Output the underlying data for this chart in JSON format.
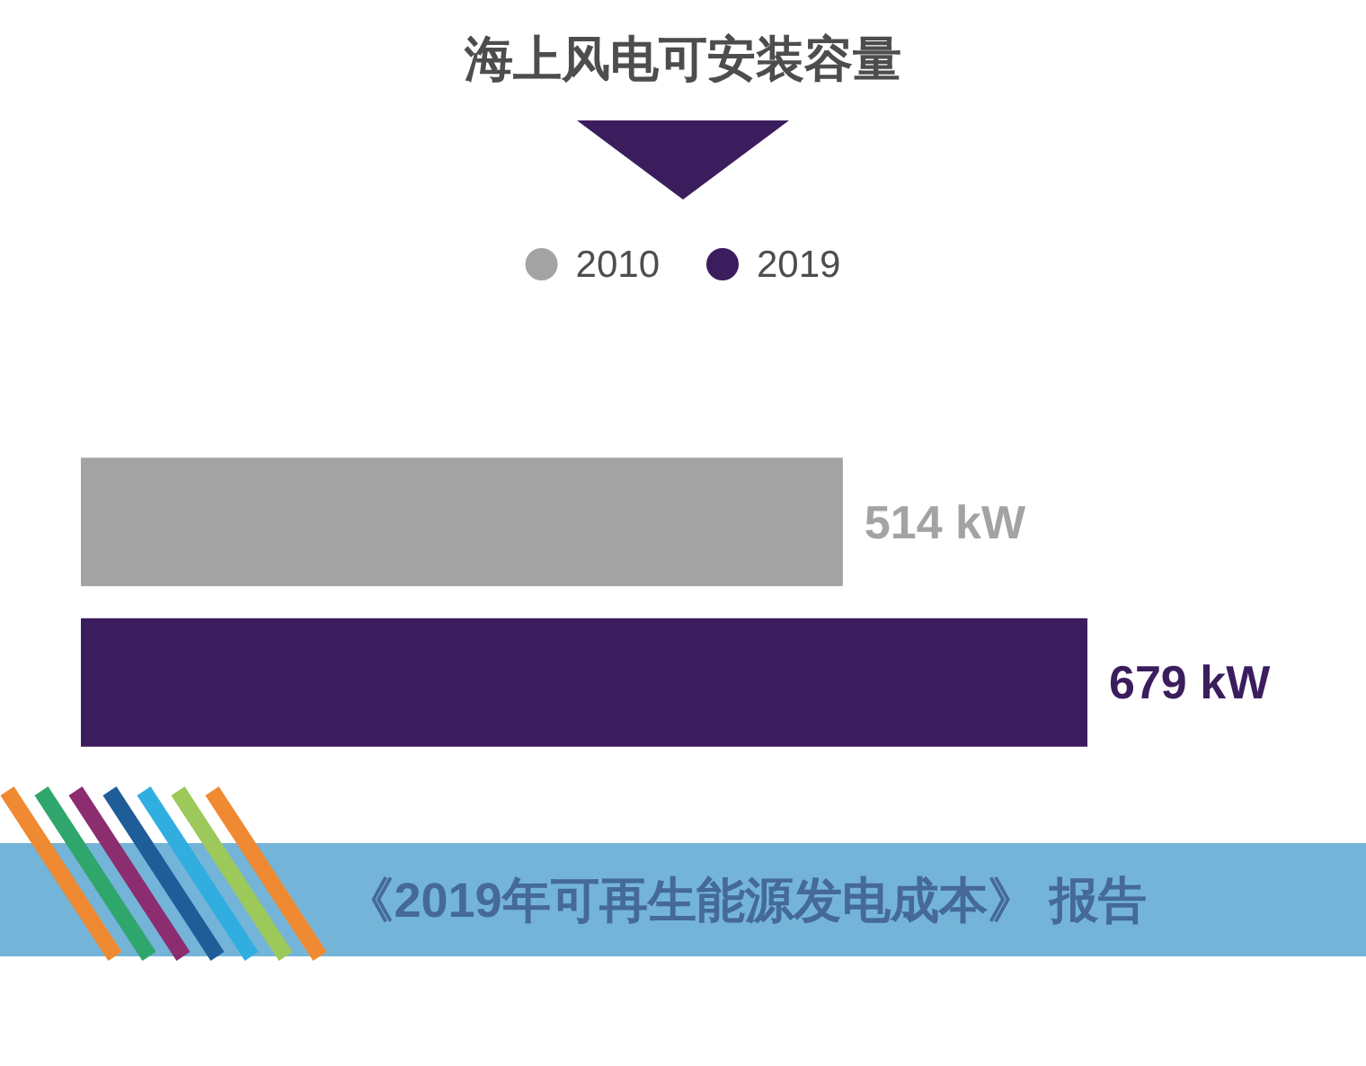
{
  "chart_data": {
    "type": "bar",
    "orientation": "horizontal",
    "title": "海上风电可安装容量",
    "categories": [
      null
    ],
    "series": [
      {
        "name": "2010",
        "color": "#a3a3a3",
        "values": [
          514
        ],
        "value_labels": [
          "514 kW"
        ]
      },
      {
        "name": "2019",
        "color": "#3b1d5e",
        "values": [
          679
        ],
        "value_labels": [
          "679 kW"
        ]
      }
    ],
    "legend": "top",
    "annotations": [
      "《2019年可再生能源发电成本》 报告"
    ]
  }
}
